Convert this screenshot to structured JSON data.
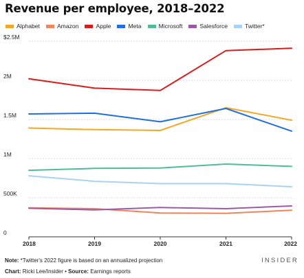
{
  "chart_data": {
    "type": "line",
    "title": "Revenue per employee, 2018–2022",
    "xlabel": "",
    "ylabel": "",
    "x": [
      "2018",
      "2019",
      "2020",
      "2021",
      "2022"
    ],
    "y_ticks": [
      "0",
      "500K",
      "1M",
      "1.5M",
      "2M",
      "$2.5M"
    ],
    "y_tick_values": [
      0,
      500000,
      1000000,
      1500000,
      2000000,
      2500000
    ],
    "ylim": [
      0,
      2500000
    ],
    "grid": true,
    "legend_position": "top",
    "series": [
      {
        "name": "Alphabet",
        "color": "#f5a623",
        "values": [
          1390000,
          1370000,
          1360000,
          1650000,
          1490000
        ]
      },
      {
        "name": "Amazon",
        "color": "#f0845a",
        "values": [
          370000,
          360000,
          305000,
          300000,
          340000
        ]
      },
      {
        "name": "Apple",
        "color": "#dd1a1a",
        "values": [
          2020000,
          1900000,
          1870000,
          2380000,
          2410000
        ]
      },
      {
        "name": "Meta",
        "color": "#1f6fe0",
        "values": [
          1570000,
          1580000,
          1470000,
          1640000,
          1350000
        ]
      },
      {
        "name": "Microsoft",
        "color": "#4dbd94",
        "values": [
          850000,
          875000,
          880000,
          930000,
          900000
        ]
      },
      {
        "name": "Salesforce",
        "color": "#9b5aa6",
        "values": [
          365000,
          345000,
          375000,
          360000,
          395000
        ]
      },
      {
        "name": "Twitter*",
        "color": "#a8d2f5",
        "values": [
          780000,
          710000,
          680000,
          680000,
          640000
        ]
      }
    ]
  },
  "footer": {
    "note_label": "Note:",
    "note_text": " *Twitter's 2022 figure is based on an annualized projection",
    "source_label": "Chart:",
    "source_author": " Ricki Lee/Insider",
    "source_sep": " • ",
    "source_label2": "Source:",
    "source_text": " Earnings reports",
    "brand": "INSIDER"
  }
}
